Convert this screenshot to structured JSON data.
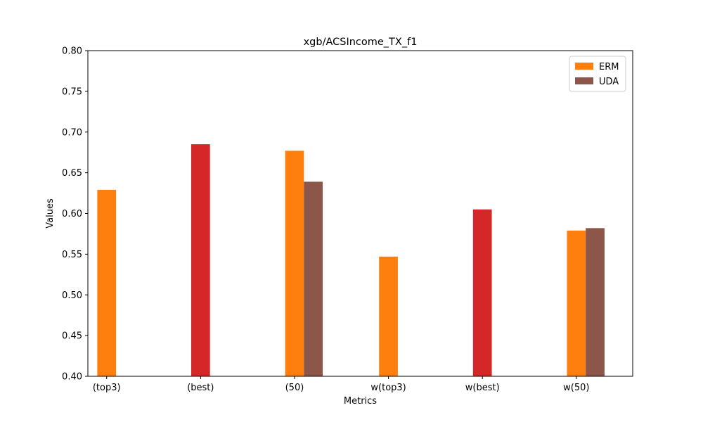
{
  "chart_data": {
    "type": "bar",
    "title": "xgb/ACSIncome_TX_f1",
    "xlabel": "Metrics",
    "ylabel": "Values",
    "ylim": [
      0.4,
      0.8
    ],
    "yticks": [
      "0.40",
      "0.45",
      "0.50",
      "0.55",
      "0.60",
      "0.65",
      "0.70",
      "0.75",
      "0.80"
    ],
    "categories": [
      "(top3)",
      "(best)",
      "(50)",
      "w(top3)",
      "w(best)",
      "w(50)"
    ],
    "bars": [
      {
        "category": "(top3)",
        "value": 0.629,
        "color": "#ff7f0e",
        "slot": "left"
      },
      {
        "category": "(best)",
        "value": 0.685,
        "color": "#d62728",
        "slot": "left"
      },
      {
        "category": "(50)",
        "value": 0.677,
        "color": "#ff7f0e",
        "slot": "left"
      },
      {
        "category": "(50)",
        "value": 0.639,
        "color": "#8c564b",
        "slot": "right"
      },
      {
        "category": "w(top3)",
        "value": 0.547,
        "color": "#ff7f0e",
        "slot": "left"
      },
      {
        "category": "w(best)",
        "value": 0.605,
        "color": "#d62728",
        "slot": "left"
      },
      {
        "category": "w(50)",
        "value": 0.579,
        "color": "#ff7f0e",
        "slot": "left"
      },
      {
        "category": "w(50)",
        "value": 0.582,
        "color": "#8c564b",
        "slot": "right"
      }
    ],
    "legend": {
      "position": "top-right",
      "entries": [
        {
          "label": "ERM",
          "color": "#ff7f0e"
        },
        {
          "label": "UDA",
          "color": "#8c564b"
        }
      ]
    },
    "grid": false
  }
}
